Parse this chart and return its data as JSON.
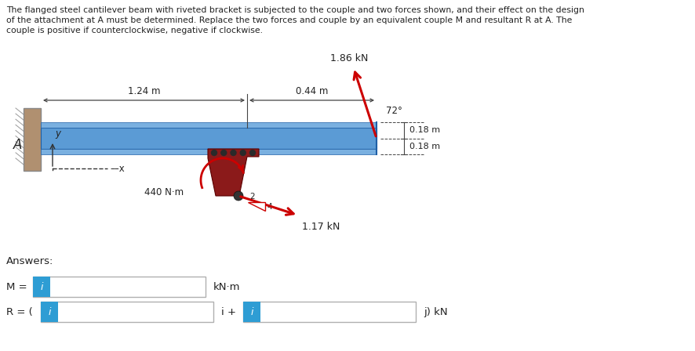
{
  "description_line1": "The flanged steel cantilever beam with riveted bracket is subjected to the couple and two forces shown, and their effect on the design",
  "description_line2": "of the attachment at A must be determined. Replace the two forces and couple by an equivalent couple M and resultant R at A. The",
  "description_line3": "couple is positive if counterclockwise, negative if clockwise.",
  "beam_color": "#5b9bd5",
  "beam_edge": "#1f5fa6",
  "wall_color": "#b09070",
  "bracket_color": "#8B1A1A",
  "arrow_color": "#cc0000",
  "dim_color": "#444444",
  "text_color": "#222222",
  "answer_box_color": "#2e9dd4",
  "answer_box_border": "#b0b0b0",
  "background_color": "#ffffff",
  "label_1_24": "1.24 m",
  "label_0_44": "0.44 m",
  "label_440": "440 N·m",
  "label_1_86": "1.86 kN",
  "label_1_17": "1.17 kN",
  "label_72": "72°",
  "label_0_18a": "0.18 m",
  "label_0_18b": "0.18 m",
  "label_A": "A",
  "label_y": "y",
  "label_x": "––x",
  "answers_label": "Answers:",
  "M_label": "M = ",
  "M_unit": "kN·m",
  "R_label": "R = (",
  "R_mid": "i +",
  "R_end": "j) kN"
}
